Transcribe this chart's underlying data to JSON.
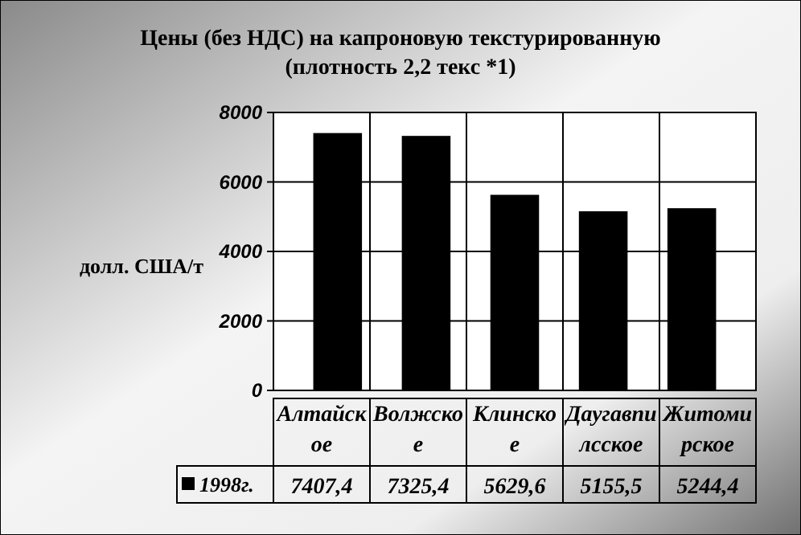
{
  "chart_data": {
    "type": "bar",
    "title": "Цены (без НДС) на капроновую текстурированную",
    "subtitle": "(плотность 2,2 текс *1)",
    "ylabel": "долл. США/т",
    "categories": [
      "Алтайское",
      "Волжское",
      "Клинское",
      "Даугавпилсское",
      "Житомирское"
    ],
    "series": [
      {
        "name": "1998г.",
        "color": "#000000",
        "values": [
          7407.4,
          7325.4,
          5629.6,
          5155.5,
          5244.4
        ],
        "value_labels": [
          "7407,4",
          "7325,4",
          "5629,6",
          "5155,5",
          "5244,4"
        ]
      }
    ],
    "ylim": [
      0,
      8000
    ],
    "yticks": [
      0,
      2000,
      4000,
      6000,
      8000
    ],
    "grid": true,
    "legend": "bottom"
  }
}
